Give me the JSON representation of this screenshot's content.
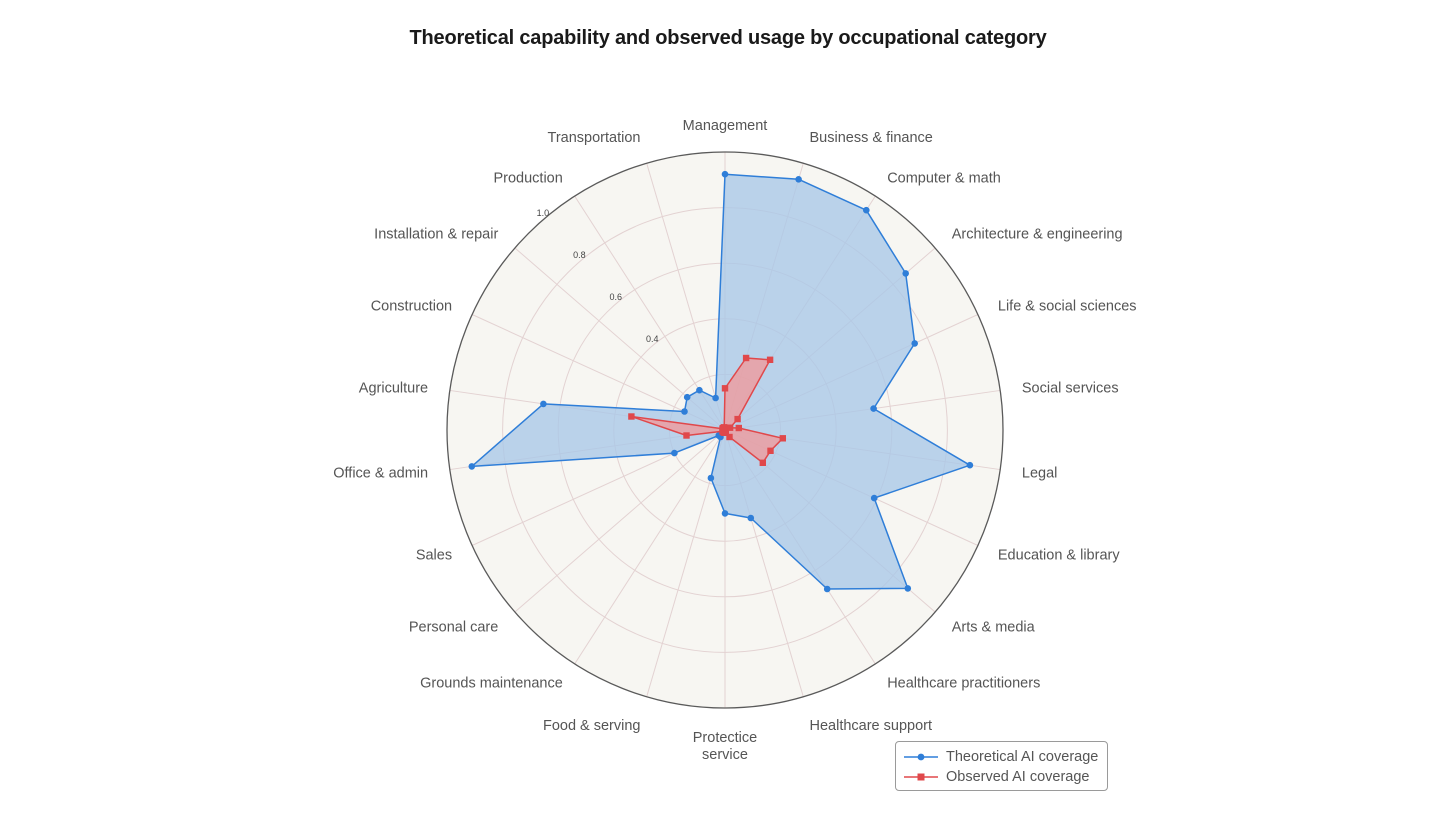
{
  "chart_data": {
    "type": "radar",
    "title": "Theoretical capability and observed usage by occupational category",
    "categories": [
      "Management",
      "Business & finance",
      "Computer & math",
      "Architecture & engineering",
      "Life & social sciences",
      "Social services",
      "Legal",
      "Education & library",
      "Arts & media",
      "Healthcare practitioners",
      "Healthcare support",
      "Protectice\nservice",
      "Food & serving",
      "Grounds maintenance",
      "Personal care",
      "Sales",
      "Office & admin",
      "Agriculture",
      "Construction",
      "Installation & repair",
      "Production",
      "Transportation"
    ],
    "rticks": [
      0.4,
      0.6,
      0.8,
      1.0
    ],
    "rlim": [
      0,
      1.0
    ],
    "series": [
      {
        "name": "Theoretical AI coverage",
        "color": "#2f7ed8",
        "fill": "#a9c8e8",
        "marker": "circle",
        "values": [
          0.92,
          0.94,
          0.94,
          0.86,
          0.75,
          0.54,
          0.89,
          0.59,
          0.87,
          0.68,
          0.33,
          0.3,
          0.18,
          0.03,
          0.03,
          0.2,
          0.92,
          0.66,
          0.16,
          0.18,
          0.17,
          0.12
        ]
      },
      {
        "name": "Observed AI coverage",
        "color": "#e0484b",
        "fill": "#ef9a9b",
        "marker": "square",
        "values": [
          0.15,
          0.27,
          0.3,
          0.06,
          0.02,
          0.05,
          0.21,
          0.18,
          0.18,
          0.03,
          0.01,
          0.01,
          0.01,
          0.01,
          0.01,
          0.01,
          0.14,
          0.34,
          0.01,
          0.01,
          0.01,
          0.01
        ]
      }
    ],
    "legend": "bottom-right",
    "grid": true
  }
}
